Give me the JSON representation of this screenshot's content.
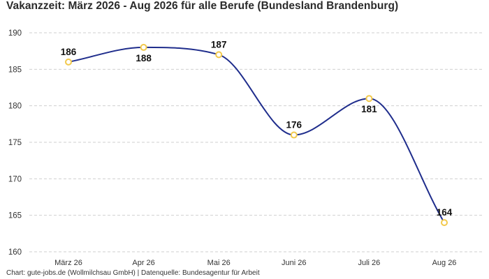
{
  "chart_data": {
    "type": "line",
    "title": "Vakanzzeit: März 2026 - Aug 2026 für alle Berufe (Bundesland Brandenburg)",
    "categories": [
      "März 26",
      "Apr 26",
      "Mai 26",
      "Juni 26",
      "Juli 26",
      "Aug 26"
    ],
    "series": [
      {
        "values": [
          186,
          188,
          187,
          176,
          181,
          164
        ]
      }
    ],
    "ylim": [
      160,
      190
    ],
    "yticks": [
      160,
      165,
      170,
      175,
      180,
      185,
      190
    ],
    "grid": true,
    "line_color": "#1f2d8c",
    "marker_color": "#f2c94c",
    "source": "Chart: gute-jobs.de (Wollmilchsau GmbH) | Datenquelle: Bundesagentur für Arbeit"
  }
}
